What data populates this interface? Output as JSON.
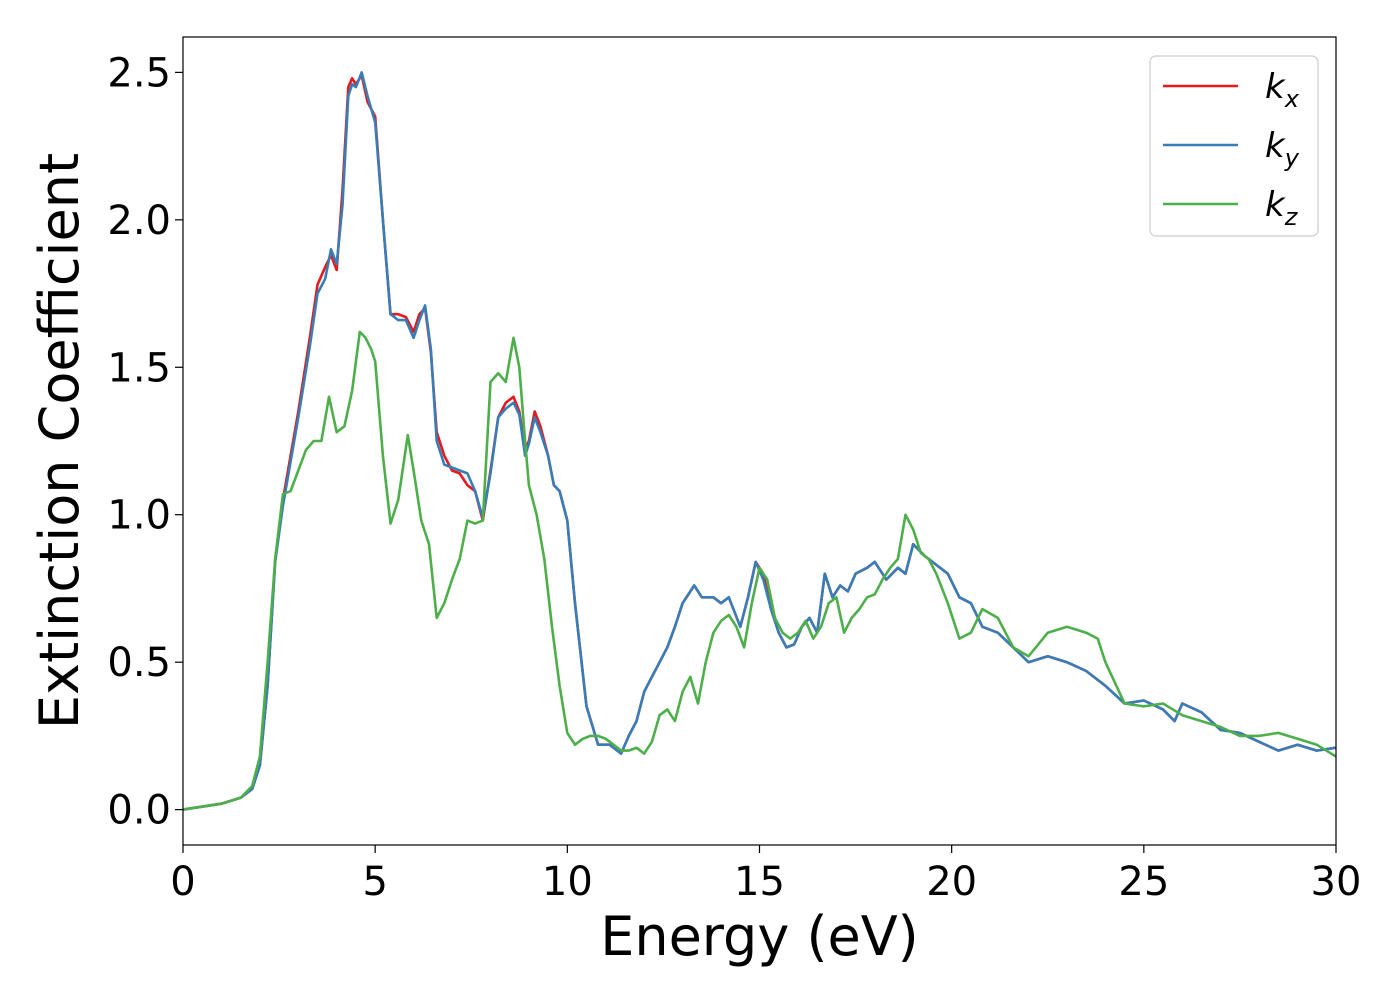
{
  "chart_data": {
    "type": "line",
    "title": "",
    "xlabel": "Energy (eV)",
    "ylabel": "Extinction Coefficient",
    "xlim": [
      0,
      30
    ],
    "ylim": [
      -0.12,
      2.62
    ],
    "xticks": [
      0,
      5,
      10,
      15,
      20,
      25,
      30
    ],
    "xtick_labels": [
      "0",
      "5",
      "10",
      "15",
      "20",
      "25",
      "30"
    ],
    "yticks": [
      0.0,
      0.5,
      1.0,
      1.5,
      2.0,
      2.5
    ],
    "ytick_labels": [
      "0.0",
      "0.5",
      "1.0",
      "1.5",
      "2.0",
      "2.5"
    ],
    "grid": false,
    "legend_position": "top-right",
    "series": [
      {
        "name": "k",
        "subscript": "x",
        "color": "#e41a1c",
        "x": [
          0,
          1,
          1.5,
          1.8,
          2.0,
          2.2,
          2.4,
          2.6,
          2.8,
          3.0,
          3.3,
          3.5,
          3.7,
          3.85,
          4.0,
          4.15,
          4.3,
          4.4,
          4.5,
          4.65,
          4.8,
          5.0,
          5.2,
          5.4,
          5.6,
          5.8,
          6.0,
          6.15,
          6.3,
          6.45,
          6.6,
          6.8,
          7.0,
          7.2,
          7.4,
          7.6,
          7.8,
          8.0,
          8.2,
          8.4,
          8.6,
          8.75,
          8.9,
          9.0,
          9.15,
          9.3,
          9.5,
          9.65,
          9.8,
          10.0,
          10.2,
          10.5,
          10.8,
          11.1,
          11.4,
          11.6,
          11.8,
          12.0,
          12.2,
          12.4,
          12.6,
          12.8,
          13.0,
          13.3,
          13.5,
          13.8,
          14.0,
          14.2,
          14.5,
          14.7,
          14.9,
          15.1,
          15.3,
          15.5,
          15.7,
          15.9,
          16.1,
          16.3,
          16.5,
          16.7,
          16.9,
          17.1,
          17.3,
          17.5,
          17.8,
          18.0,
          18.3,
          18.6,
          18.8,
          19.0,
          19.3,
          19.6,
          19.9,
          20.2,
          20.5,
          20.8,
          21.2,
          21.6,
          22.0,
          22.5,
          23.0,
          23.5,
          24.0,
          24.5,
          25.0,
          25.5,
          25.8,
          26.0,
          26.5,
          27.0,
          27.5,
          28.0,
          28.5,
          29.0,
          29.5,
          30.0
        ],
        "y": [
          0,
          0.02,
          0.04,
          0.07,
          0.15,
          0.42,
          0.85,
          1.05,
          1.2,
          1.35,
          1.6,
          1.78,
          1.84,
          1.88,
          1.83,
          2.1,
          2.45,
          2.48,
          2.46,
          2.49,
          2.4,
          2.35,
          2.0,
          1.68,
          1.68,
          1.67,
          1.62,
          1.68,
          1.7,
          1.55,
          1.28,
          1.2,
          1.15,
          1.14,
          1.1,
          1.08,
          0.98,
          1.15,
          1.33,
          1.38,
          1.4,
          1.35,
          1.22,
          1.25,
          1.35,
          1.3,
          1.2,
          1.1,
          1.08,
          0.98,
          0.7,
          0.35,
          0.22,
          0.22,
          0.19,
          0.25,
          0.3,
          0.4,
          0.45,
          0.5,
          0.55,
          0.62,
          0.7,
          0.76,
          0.72,
          0.72,
          0.7,
          0.72,
          0.62,
          0.72,
          0.84,
          0.8,
          0.68,
          0.6,
          0.55,
          0.56,
          0.62,
          0.65,
          0.6,
          0.8,
          0.72,
          0.76,
          0.74,
          0.8,
          0.82,
          0.84,
          0.78,
          0.82,
          0.8,
          0.9,
          0.86,
          0.83,
          0.8,
          0.72,
          0.7,
          0.62,
          0.6,
          0.55,
          0.5,
          0.52,
          0.5,
          0.47,
          0.42,
          0.36,
          0.37,
          0.34,
          0.3,
          0.36,
          0.33,
          0.27,
          0.26,
          0.23,
          0.2,
          0.22,
          0.2,
          0.21
        ]
      },
      {
        "name": "k",
        "subscript": "y",
        "color": "#377eb8",
        "x": [
          0,
          1,
          1.5,
          1.8,
          2.0,
          2.2,
          2.4,
          2.6,
          2.8,
          3.0,
          3.3,
          3.5,
          3.7,
          3.85,
          4.0,
          4.15,
          4.3,
          4.4,
          4.5,
          4.65,
          4.8,
          5.0,
          5.2,
          5.4,
          5.6,
          5.8,
          6.0,
          6.15,
          6.3,
          6.45,
          6.6,
          6.8,
          7.0,
          7.2,
          7.4,
          7.6,
          7.8,
          8.0,
          8.2,
          8.4,
          8.6,
          8.75,
          8.9,
          9.0,
          9.15,
          9.3,
          9.5,
          9.65,
          9.8,
          10.0,
          10.2,
          10.5,
          10.8,
          11.1,
          11.4,
          11.6,
          11.8,
          12.0,
          12.2,
          12.4,
          12.6,
          12.8,
          13.0,
          13.3,
          13.5,
          13.8,
          14.0,
          14.2,
          14.5,
          14.7,
          14.9,
          15.1,
          15.3,
          15.5,
          15.7,
          15.9,
          16.1,
          16.3,
          16.5,
          16.7,
          16.9,
          17.1,
          17.3,
          17.5,
          17.8,
          18.0,
          18.3,
          18.6,
          18.8,
          19.0,
          19.3,
          19.6,
          19.9,
          20.2,
          20.5,
          20.8,
          21.2,
          21.6,
          22.0,
          22.5,
          23.0,
          23.5,
          24.0,
          24.5,
          25.0,
          25.5,
          25.8,
          26.0,
          26.5,
          27.0,
          27.5,
          28.0,
          28.5,
          29.0,
          29.5,
          30.0
        ],
        "y": [
          0,
          0.02,
          0.04,
          0.07,
          0.15,
          0.42,
          0.84,
          1.03,
          1.18,
          1.33,
          1.57,
          1.75,
          1.8,
          1.9,
          1.85,
          2.05,
          2.42,
          2.46,
          2.45,
          2.5,
          2.42,
          2.33,
          2.0,
          1.68,
          1.66,
          1.66,
          1.6,
          1.66,
          1.71,
          1.56,
          1.25,
          1.17,
          1.16,
          1.15,
          1.14,
          1.08,
          0.99,
          1.14,
          1.33,
          1.36,
          1.38,
          1.34,
          1.2,
          1.24,
          1.33,
          1.28,
          1.2,
          1.1,
          1.08,
          0.98,
          0.7,
          0.35,
          0.22,
          0.22,
          0.19,
          0.25,
          0.3,
          0.4,
          0.45,
          0.5,
          0.55,
          0.62,
          0.7,
          0.76,
          0.72,
          0.72,
          0.7,
          0.72,
          0.62,
          0.72,
          0.84,
          0.78,
          0.68,
          0.6,
          0.55,
          0.56,
          0.62,
          0.65,
          0.6,
          0.8,
          0.72,
          0.76,
          0.74,
          0.8,
          0.82,
          0.84,
          0.78,
          0.82,
          0.8,
          0.9,
          0.86,
          0.83,
          0.8,
          0.72,
          0.7,
          0.62,
          0.6,
          0.55,
          0.5,
          0.52,
          0.5,
          0.47,
          0.42,
          0.36,
          0.37,
          0.34,
          0.3,
          0.36,
          0.33,
          0.27,
          0.26,
          0.23,
          0.2,
          0.22,
          0.2,
          0.21
        ]
      },
      {
        "name": "k",
        "subscript": "z",
        "color": "#4daf4a",
        "x": [
          0,
          1,
          1.5,
          1.8,
          2.0,
          2.2,
          2.4,
          2.6,
          2.8,
          3.0,
          3.2,
          3.4,
          3.6,
          3.8,
          4.0,
          4.2,
          4.4,
          4.6,
          4.75,
          4.9,
          5.0,
          5.2,
          5.4,
          5.6,
          5.85,
          6.0,
          6.2,
          6.4,
          6.6,
          6.8,
          7.0,
          7.2,
          7.4,
          7.6,
          7.8,
          8.0,
          8.2,
          8.4,
          8.6,
          8.75,
          8.9,
          9.0,
          9.2,
          9.4,
          9.6,
          9.8,
          10.0,
          10.2,
          10.4,
          10.6,
          10.8,
          11.0,
          11.2,
          11.4,
          11.6,
          11.8,
          12.0,
          12.2,
          12.4,
          12.6,
          12.8,
          13.0,
          13.2,
          13.4,
          13.6,
          13.8,
          14.0,
          14.2,
          14.4,
          14.6,
          14.8,
          15.0,
          15.2,
          15.4,
          15.6,
          15.8,
          16.0,
          16.2,
          16.4,
          16.6,
          16.8,
          17.0,
          17.2,
          17.4,
          17.6,
          17.8,
          18.0,
          18.2,
          18.4,
          18.6,
          18.8,
          19.0,
          19.2,
          19.4,
          19.6,
          19.9,
          20.2,
          20.5,
          20.8,
          21.2,
          21.6,
          22.0,
          22.5,
          23.0,
          23.5,
          23.8,
          24.0,
          24.5,
          25.0,
          25.5,
          26.0,
          26.5,
          27.0,
          27.5,
          28.0,
          28.5,
          29.0,
          29.5,
          30.0
        ],
        "y": [
          0,
          0.02,
          0.04,
          0.08,
          0.18,
          0.5,
          0.85,
          1.07,
          1.08,
          1.15,
          1.22,
          1.25,
          1.25,
          1.4,
          1.28,
          1.3,
          1.42,
          1.62,
          1.6,
          1.56,
          1.52,
          1.2,
          0.97,
          1.05,
          1.27,
          1.15,
          0.98,
          0.9,
          0.65,
          0.7,
          0.78,
          0.85,
          0.98,
          0.97,
          0.98,
          1.45,
          1.48,
          1.45,
          1.6,
          1.5,
          1.25,
          1.1,
          1.0,
          0.85,
          0.62,
          0.42,
          0.26,
          0.22,
          0.24,
          0.25,
          0.25,
          0.24,
          0.22,
          0.2,
          0.2,
          0.21,
          0.19,
          0.23,
          0.32,
          0.34,
          0.3,
          0.4,
          0.45,
          0.36,
          0.5,
          0.6,
          0.64,
          0.66,
          0.62,
          0.55,
          0.7,
          0.82,
          0.78,
          0.65,
          0.6,
          0.58,
          0.6,
          0.64,
          0.58,
          0.62,
          0.7,
          0.72,
          0.6,
          0.65,
          0.68,
          0.72,
          0.73,
          0.78,
          0.82,
          0.85,
          1.0,
          0.95,
          0.87,
          0.85,
          0.8,
          0.7,
          0.58,
          0.6,
          0.68,
          0.65,
          0.55,
          0.52,
          0.6,
          0.62,
          0.6,
          0.58,
          0.5,
          0.36,
          0.35,
          0.36,
          0.32,
          0.3,
          0.28,
          0.25,
          0.25,
          0.26,
          0.24,
          0.22,
          0.18
        ]
      }
    ]
  }
}
